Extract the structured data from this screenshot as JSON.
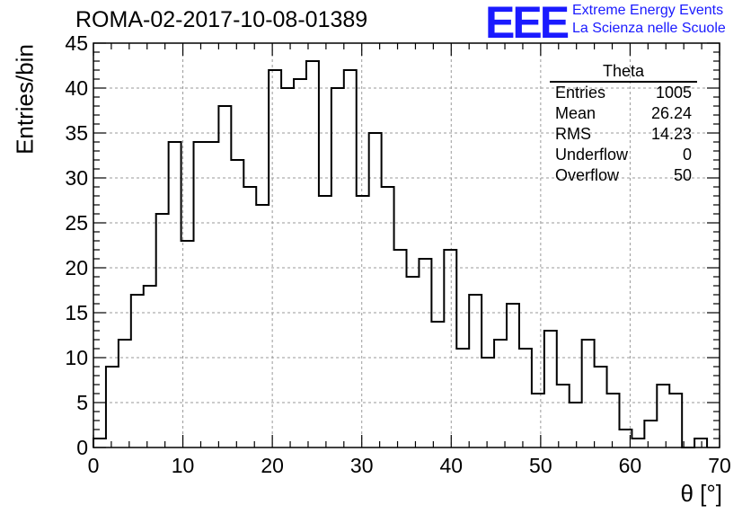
{
  "title": "ROMA-02-2017-10-08-01389",
  "logo": {
    "mark": "EEE",
    "line1": "Extreme Energy Events",
    "line2": "La Scienza nelle Scuole",
    "color": "#1a1aff"
  },
  "stats": {
    "name": "Theta",
    "rows": [
      {
        "label": "Entries",
        "value": "1005"
      },
      {
        "label": "Mean",
        "value": "26.24"
      },
      {
        "label": "RMS",
        "value": "14.23"
      },
      {
        "label": "Underflow",
        "value": "0"
      },
      {
        "label": "Overflow",
        "value": "50"
      }
    ]
  },
  "chart_data": {
    "type": "bar",
    "title": "ROMA-02-2017-10-08-01389",
    "xlabel": "θ [°]",
    "ylabel": "Entries/bin",
    "xlim": [
      0,
      70
    ],
    "ylim": [
      0,
      45
    ],
    "bin_edges_start": 0,
    "bin_width": 1.4,
    "values": [
      1,
      9,
      12,
      17,
      18,
      26,
      34,
      23,
      34,
      34,
      38,
      32,
      29,
      27,
      42,
      40,
      41,
      43,
      28,
      40,
      42,
      28,
      35,
      29,
      22,
      19,
      21,
      14,
      22,
      11,
      17,
      10,
      12,
      16,
      11,
      6,
      13,
      7,
      5,
      12,
      9,
      6,
      2,
      1,
      3,
      7,
      6,
      0,
      1
    ],
    "x_ticks": [
      0,
      10,
      20,
      30,
      40,
      50,
      60,
      70
    ],
    "y_ticks": [
      0,
      5,
      10,
      15,
      20,
      25,
      30,
      35,
      40,
      45
    ],
    "grid": true,
    "legend": "top-right"
  }
}
